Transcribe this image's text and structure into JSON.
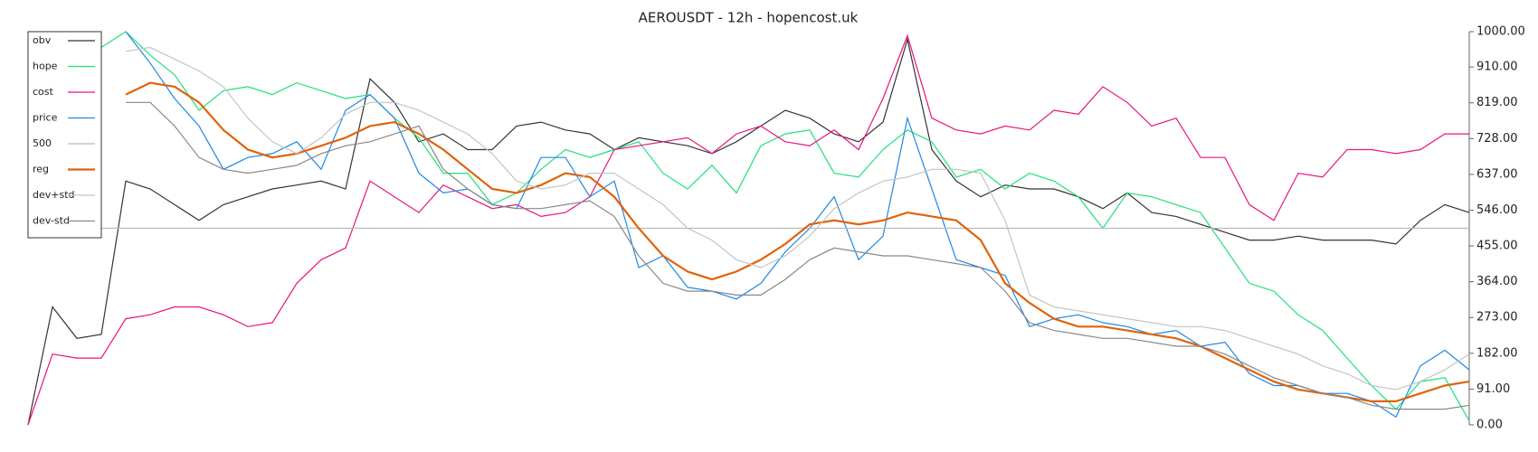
{
  "chart_data": {
    "type": "line",
    "title": "AEROUSDT - 12h - hopencost.uk",
    "ylim": [
      0,
      1000
    ],
    "yticks": [
      {
        "value": 0,
        "label": "0.00"
      },
      {
        "value": 91,
        "label": "91.00"
      },
      {
        "value": 182,
        "label": "182.00"
      },
      {
        "value": 273,
        "label": "273.00"
      },
      {
        "value": 364,
        "label": "364.00"
      },
      {
        "value": 455,
        "label": "455.00"
      },
      {
        "value": 546,
        "label": "546.00"
      },
      {
        "value": 637,
        "label": "637.00"
      },
      {
        "value": 728,
        "label": "728.00"
      },
      {
        "value": 819,
        "label": "819.00"
      },
      {
        "value": 910,
        "label": "910.00"
      },
      {
        "value": 1000,
        "label": "1000.00"
      }
    ],
    "legend": "upper left",
    "series": [
      {
        "name": "obv",
        "color": "#333333",
        "values": [
          0,
          300,
          220,
          230,
          620,
          600,
          560,
          520,
          560,
          580,
          600,
          610,
          620,
          600,
          880,
          820,
          720,
          740,
          700,
          700,
          760,
          770,
          750,
          740,
          700,
          730,
          720,
          710,
          690,
          720,
          760,
          800,
          780,
          740,
          720,
          770,
          980,
          700,
          620,
          580,
          610,
          600,
          600,
          580,
          550,
          590,
          540,
          530,
          510,
          490,
          470,
          470,
          480,
          470,
          470,
          470,
          460,
          520,
          560,
          540
        ]
      },
      {
        "name": "hope",
        "color": "#1fe07a",
        "values": [
          null,
          null,
          null,
          960,
          1000,
          940,
          890,
          800,
          850,
          860,
          840,
          870,
          850,
          830,
          840,
          780,
          730,
          640,
          640,
          560,
          590,
          650,
          700,
          680,
          700,
          720,
          640,
          600,
          660,
          590,
          710,
          740,
          750,
          640,
          630,
          700,
          750,
          720,
          630,
          650,
          600,
          640,
          620,
          580,
          500,
          590,
          580,
          560,
          540,
          450,
          360,
          340,
          280,
          240,
          170,
          100,
          40,
          110,
          120,
          10
        ]
      },
      {
        "name": "cost",
        "color": "#e6157f",
        "values": [
          0,
          180,
          170,
          170,
          270,
          280,
          300,
          300,
          280,
          250,
          260,
          360,
          420,
          450,
          620,
          580,
          540,
          610,
          580,
          550,
          560,
          530,
          540,
          580,
          700,
          710,
          720,
          730,
          690,
          740,
          760,
          720,
          710,
          750,
          700,
          830,
          990,
          780,
          750,
          740,
          760,
          750,
          800,
          790,
          860,
          820,
          760,
          780,
          680,
          680,
          560,
          520,
          640,
          630,
          700,
          700,
          690,
          700,
          740,
          740
        ]
      },
      {
        "name": "price",
        "color": "#1e88e5",
        "values": [
          null,
          null,
          null,
          null,
          1000,
          920,
          830,
          760,
          650,
          680,
          690,
          720,
          650,
          800,
          840,
          780,
          640,
          590,
          600,
          560,
          550,
          680,
          680,
          580,
          620,
          400,
          430,
          350,
          340,
          320,
          360,
          440,
          500,
          580,
          420,
          480,
          780,
          600,
          420,
          400,
          380,
          250,
          270,
          280,
          260,
          250,
          230,
          240,
          200,
          210,
          130,
          100,
          100,
          80,
          80,
          60,
          20,
          150,
          190,
          140
        ]
      },
      {
        "name": "500",
        "color": "#bbbbbb",
        "values": [
          500,
          500,
          500,
          500,
          500,
          500,
          500,
          500,
          500,
          500,
          500,
          500,
          500,
          500,
          500,
          500,
          500,
          500,
          500,
          500,
          500,
          500,
          500,
          500,
          500,
          500,
          500,
          500,
          500,
          500,
          500,
          500,
          500,
          500,
          500,
          500,
          500,
          500,
          500,
          500,
          500,
          500,
          500,
          500,
          500,
          500,
          500,
          500,
          500,
          500,
          500,
          500,
          500,
          500,
          500,
          500,
          500,
          500,
          500,
          500
        ]
      },
      {
        "name": "reg",
        "color": "#e0620a",
        "values": [
          null,
          null,
          null,
          null,
          840,
          870,
          860,
          820,
          750,
          700,
          680,
          690,
          710,
          730,
          760,
          770,
          740,
          700,
          650,
          600,
          590,
          610,
          640,
          630,
          580,
          500,
          430,
          390,
          370,
          390,
          420,
          460,
          510,
          520,
          510,
          520,
          540,
          530,
          520,
          470,
          360,
          310,
          270,
          250,
          250,
          240,
          230,
          220,
          200,
          170,
          140,
          110,
          90,
          80,
          70,
          60,
          60,
          80,
          100,
          110
        ]
      },
      {
        "name": "dev+std",
        "color": "#c4c4c4",
        "values": [
          null,
          null,
          null,
          null,
          950,
          960,
          930,
          900,
          860,
          780,
          720,
          690,
          730,
          790,
          820,
          820,
          800,
          770,
          740,
          690,
          620,
          600,
          610,
          640,
          640,
          600,
          560,
          500,
          470,
          420,
          400,
          430,
          480,
          550,
          590,
          620,
          630,
          650,
          650,
          640,
          520,
          330,
          300,
          290,
          280,
          270,
          260,
          250,
          250,
          240,
          220,
          200,
          180,
          150,
          130,
          100,
          90,
          110,
          140,
          180
        ]
      },
      {
        "name": "dev-std",
        "color": "#888888",
        "values": [
          null,
          null,
          null,
          null,
          820,
          820,
          760,
          680,
          650,
          640,
          650,
          660,
          690,
          710,
          720,
          740,
          760,
          650,
          600,
          560,
          550,
          550,
          560,
          570,
          530,
          430,
          360,
          340,
          340,
          330,
          330,
          370,
          420,
          450,
          440,
          430,
          430,
          420,
          410,
          400,
          340,
          260,
          240,
          230,
          220,
          220,
          210,
          200,
          200,
          180,
          150,
          120,
          100,
          80,
          70,
          50,
          40,
          40,
          40,
          50
        ]
      }
    ]
  }
}
